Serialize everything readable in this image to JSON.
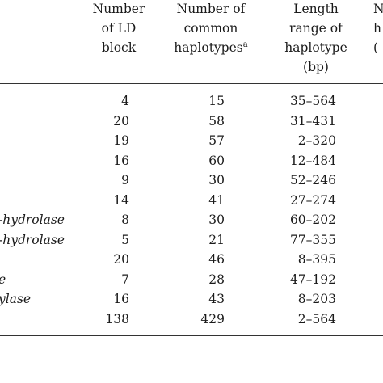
{
  "table": {
    "headers": {
      "ld_block": [
        "Number",
        "of LD",
        "block"
      ],
      "haplotypes": [
        "Number of",
        "common",
        "haplotypes"
      ],
      "haplotypes_sup": "a",
      "length": [
        "Length",
        "range of",
        "haplotype",
        "(bp)"
      ],
      "partial_right": [
        "N",
        "h",
        "("
      ]
    },
    "rows": [
      {
        "name": "",
        "ld": "4",
        "hap": "15",
        "len": "35–564"
      },
      {
        "name": "",
        "ld": "20",
        "hap": "58",
        "len": "31–431"
      },
      {
        "name": "",
        "ld": "19",
        "hap": "57",
        "len": "2–320"
      },
      {
        "name": "",
        "ld": "16",
        "hap": "60",
        "len": "12–484"
      },
      {
        "name": "",
        "ld": "9",
        "hap": "30",
        "len": "52–246"
      },
      {
        "name": "",
        "ld": "14",
        "hap": "41",
        "len": "27–274"
      },
      {
        "name": "-hydrolase",
        "ld": "8",
        "hap": "30",
        "len": "60–202"
      },
      {
        "name": "-hydrolase",
        "ld": "5",
        "hap": "21",
        "len": "77–355"
      },
      {
        "name": "",
        "ld": "20",
        "hap": "46",
        "len": "8–395"
      },
      {
        "name": "e",
        "ld": "7",
        "hap": "28",
        "len": "47–192"
      },
      {
        "name": "ylase",
        "ld": "16",
        "hap": "43",
        "len": "8–203"
      },
      {
        "name": "",
        "ld": "138",
        "hap": "429",
        "len": "2–564"
      }
    ]
  }
}
